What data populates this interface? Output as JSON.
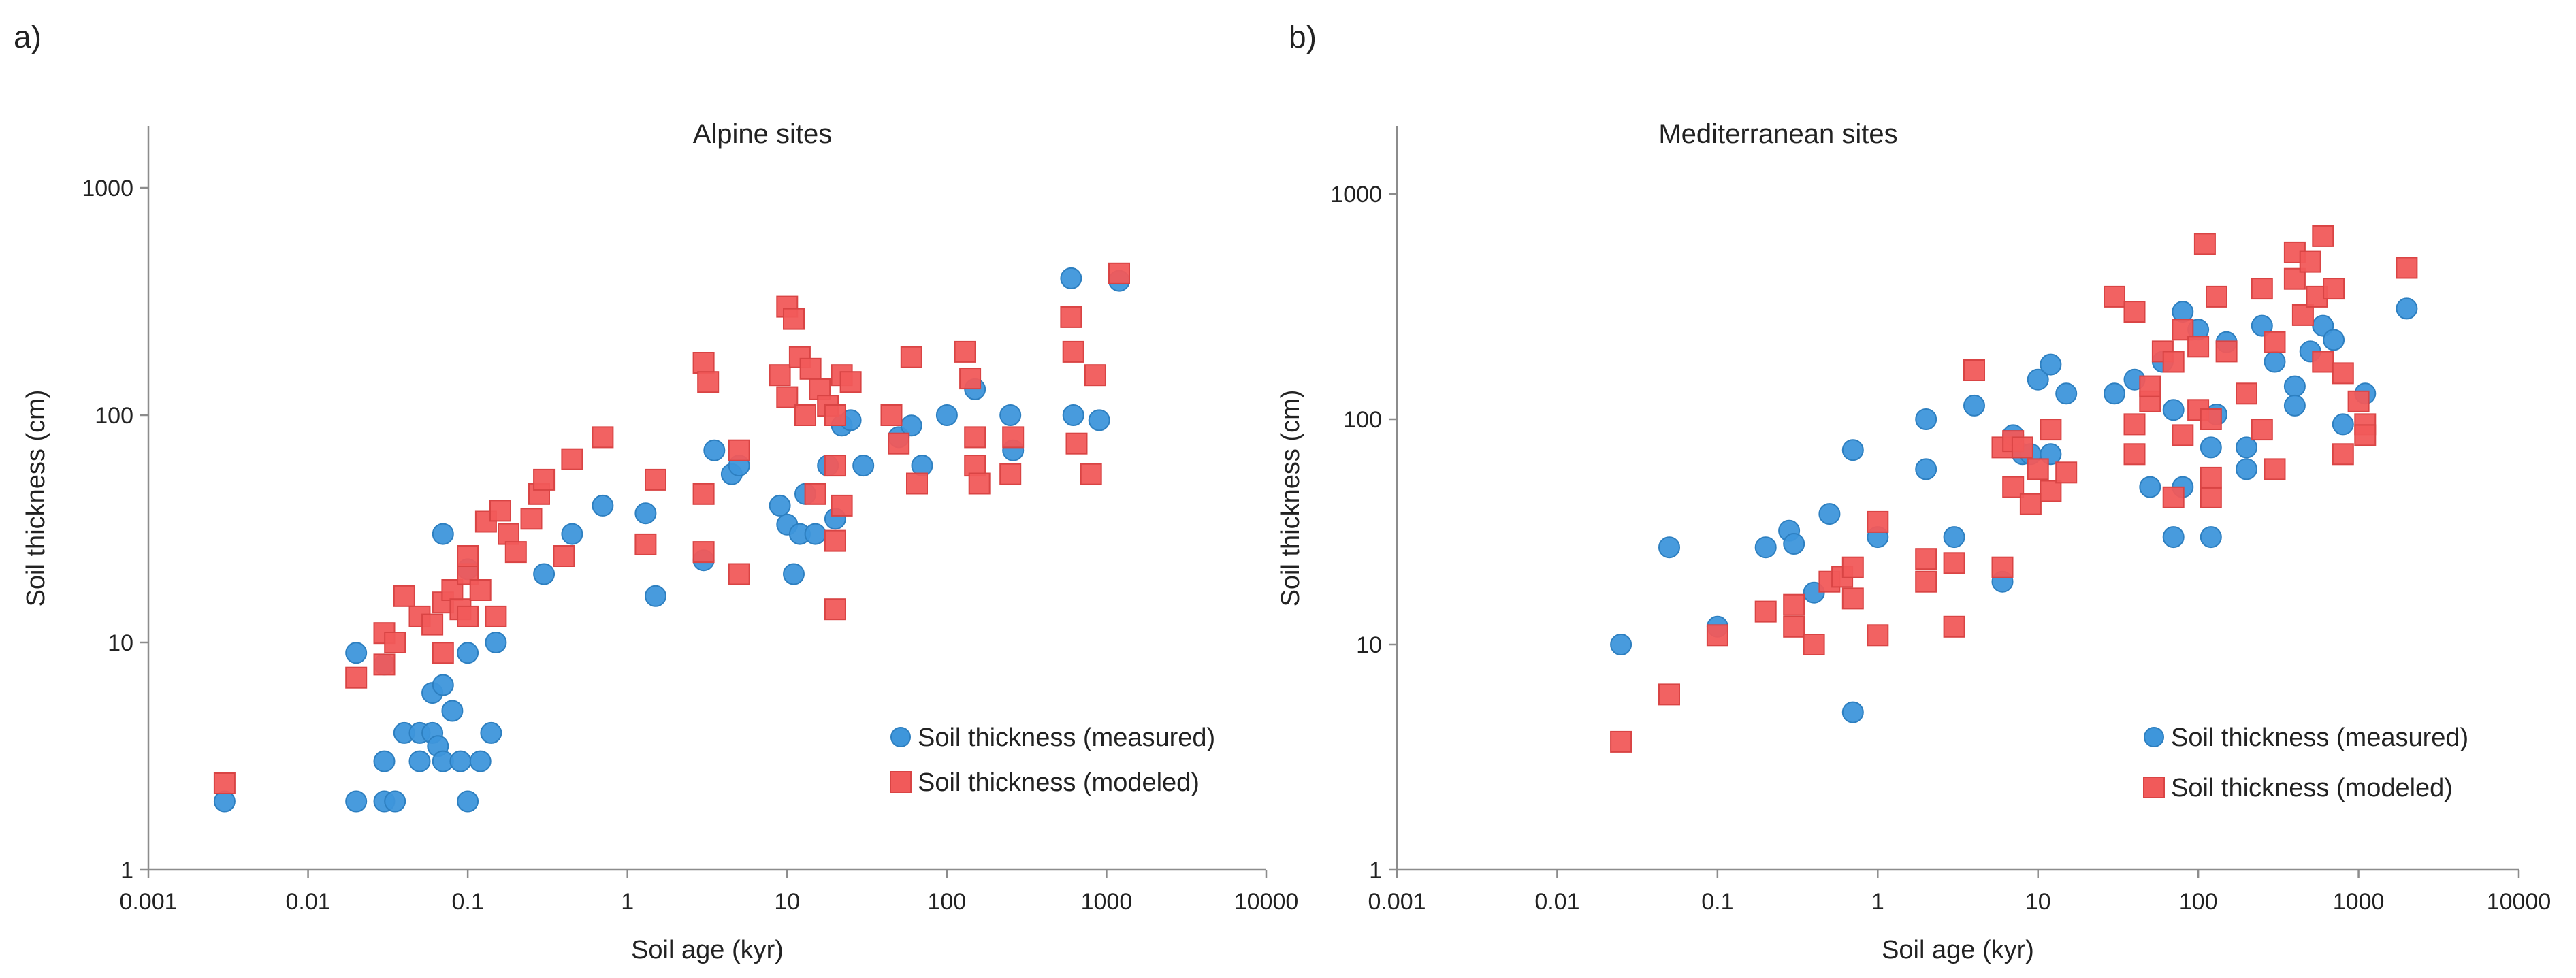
{
  "chart_data": [
    {
      "type": "scatter",
      "panel_label": "a)",
      "title": "Alpine sites",
      "xlabel": "Soil age (kyr)",
      "ylabel": "Soil thickness (cm)",
      "xscale": "log",
      "yscale": "log",
      "xlim": [
        0.001,
        10000
      ],
      "ylim": [
        1,
        2000
      ],
      "xticks": [
        "0.001",
        "0.01",
        "0.1",
        "1",
        "10",
        "100",
        "1000",
        "10000"
      ],
      "yticks": [
        "1",
        "10",
        "100",
        "1000"
      ],
      "legend": {
        "position": "bottom-right",
        "entries": [
          "Soil thickness (measured)",
          "Soil thickness (modeled)"
        ]
      },
      "series": [
        {
          "name": "Soil thickness (measured)",
          "marker": "circle",
          "color": "#3e96db",
          "points": [
            [
              0.003,
              2
            ],
            [
              0.02,
              2
            ],
            [
              0.02,
              9
            ],
            [
              0.03,
              2
            ],
            [
              0.03,
              3
            ],
            [
              0.03,
              8
            ],
            [
              0.035,
              2
            ],
            [
              0.04,
              4
            ],
            [
              0.05,
              3
            ],
            [
              0.05,
              4
            ],
            [
              0.06,
              4
            ],
            [
              0.06,
              6
            ],
            [
              0.065,
              3.5
            ],
            [
              0.07,
              3
            ],
            [
              0.07,
              6.5
            ],
            [
              0.08,
              5
            ],
            [
              0.09,
              3
            ],
            [
              0.1,
              2
            ],
            [
              0.1,
              9
            ],
            [
              0.1,
              21
            ],
            [
              0.12,
              3
            ],
            [
              0.14,
              4
            ],
            [
              0.15,
              10
            ],
            [
              0.07,
              30
            ],
            [
              0.3,
              20
            ],
            [
              0.45,
              30
            ],
            [
              0.7,
              40
            ],
            [
              1.3,
              37
            ],
            [
              1.5,
              16
            ],
            [
              3,
              23
            ],
            [
              3.5,
              70
            ],
            [
              4.5,
              55
            ],
            [
              5,
              60
            ],
            [
              9,
              40
            ],
            [
              10,
              33
            ],
            [
              11,
              20
            ],
            [
              12,
              30
            ],
            [
              13,
              45
            ],
            [
              15,
              30
            ],
            [
              18,
              60
            ],
            [
              20,
              35
            ],
            [
              22,
              90
            ],
            [
              25,
              95
            ],
            [
              30,
              60
            ],
            [
              50,
              80
            ],
            [
              60,
              90
            ],
            [
              70,
              60
            ],
            [
              100,
              100
            ],
            [
              150,
              130
            ],
            [
              250,
              100
            ],
            [
              600,
              400
            ],
            [
              620,
              100
            ],
            [
              900,
              95
            ],
            [
              1200,
              390
            ],
            [
              260,
              70
            ]
          ]
        },
        {
          "name": "Soil thickness (modeled)",
          "marker": "square",
          "color": "#f15a5a",
          "points": [
            [
              0.003,
              2.4
            ],
            [
              0.02,
              7
            ],
            [
              0.03,
              8
            ],
            [
              0.03,
              11
            ],
            [
              0.035,
              10
            ],
            [
              0.04,
              16
            ],
            [
              0.05,
              13
            ],
            [
              0.06,
              12
            ],
            [
              0.07,
              9
            ],
            [
              0.07,
              15
            ],
            [
              0.08,
              17
            ],
            [
              0.09,
              14
            ],
            [
              0.1,
              13
            ],
            [
              0.1,
              20
            ],
            [
              0.1,
              24
            ],
            [
              0.12,
              17
            ],
            [
              0.13,
              34
            ],
            [
              0.15,
              13
            ],
            [
              0.16,
              38
            ],
            [
              0.18,
              30
            ],
            [
              0.2,
              25
            ],
            [
              0.25,
              35
            ],
            [
              0.28,
              45
            ],
            [
              0.3,
              52
            ],
            [
              0.4,
              24
            ],
            [
              0.45,
              64
            ],
            [
              0.7,
              80
            ],
            [
              1.3,
              27
            ],
            [
              1.5,
              52
            ],
            [
              3,
              25
            ],
            [
              3,
              45
            ],
            [
              3,
              170
            ],
            [
              3.2,
              140
            ],
            [
              5,
              20
            ],
            [
              5,
              70
            ],
            [
              9,
              150
            ],
            [
              10,
              120
            ],
            [
              10,
              300
            ],
            [
              11,
              265
            ],
            [
              12,
              180
            ],
            [
              13,
              100
            ],
            [
              14,
              160
            ],
            [
              15,
              45
            ],
            [
              16,
              130
            ],
            [
              18,
              110
            ],
            [
              20,
              14
            ],
            [
              20,
              28
            ],
            [
              20,
              60
            ],
            [
              20,
              100
            ],
            [
              22,
              150
            ],
            [
              22,
              40
            ],
            [
              25,
              140
            ],
            [
              45,
              100
            ],
            [
              50,
              75
            ],
            [
              60,
              180
            ],
            [
              65,
              50
            ],
            [
              130,
              190
            ],
            [
              140,
              145
            ],
            [
              150,
              60
            ],
            [
              150,
              80
            ],
            [
              160,
              50
            ],
            [
              250,
              55
            ],
            [
              260,
              80
            ],
            [
              600,
              270
            ],
            [
              620,
              190
            ],
            [
              650,
              75
            ],
            [
              800,
              55
            ],
            [
              850,
              150
            ],
            [
              1200,
              420
            ]
          ]
        }
      ]
    },
    {
      "type": "scatter",
      "panel_label": "b)",
      "title": "Mediterranean sites",
      "xlabel": "Soil age (kyr)",
      "ylabel": "Soil thickness (cm)",
      "xscale": "log",
      "yscale": "log",
      "xlim": [
        0.001,
        10000
      ],
      "ylim": [
        1,
        2000
      ],
      "xticks": [
        "0.001",
        "0.01",
        "0.1",
        "1",
        "10",
        "100",
        "1000",
        "10000"
      ],
      "yticks": [
        "1",
        "10",
        "100",
        "1000"
      ],
      "legend": {
        "position": "bottom-right",
        "entries": [
          "Soil thickness (measured)",
          "Soil thickness (modeled)"
        ]
      },
      "series": [
        {
          "name": "Soil thickness (measured)",
          "marker": "circle",
          "color": "#3e96db",
          "points": [
            [
              0.025,
              10
            ],
            [
              0.05,
              27
            ],
            [
              0.1,
              12
            ],
            [
              0.2,
              27
            ],
            [
              0.28,
              32
            ],
            [
              0.3,
              28
            ],
            [
              0.4,
              17
            ],
            [
              0.5,
              38
            ],
            [
              0.7,
              73
            ],
            [
              0.7,
              5
            ],
            [
              1,
              30
            ],
            [
              2,
              60
            ],
            [
              2,
              100
            ],
            [
              3,
              30
            ],
            [
              4,
              115
            ],
            [
              6,
              19
            ],
            [
              7,
              85
            ],
            [
              8,
              70
            ],
            [
              9,
              70
            ],
            [
              10,
              150
            ],
            [
              12,
              175
            ],
            [
              12,
              70
            ],
            [
              15,
              130
            ],
            [
              30,
              130
            ],
            [
              40,
              150
            ],
            [
              50,
              50
            ],
            [
              60,
              180
            ],
            [
              70,
              30
            ],
            [
              70,
              110
            ],
            [
              80,
              300
            ],
            [
              80,
              50
            ],
            [
              100,
              250
            ],
            [
              120,
              75
            ],
            [
              120,
              30
            ],
            [
              130,
              105
            ],
            [
              150,
              220
            ],
            [
              200,
              60
            ],
            [
              200,
              75
            ],
            [
              250,
              260
            ],
            [
              300,
              180
            ],
            [
              400,
              140
            ],
            [
              400,
              115
            ],
            [
              500,
              200
            ],
            [
              600,
              260
            ],
            [
              700,
              225
            ],
            [
              800,
              95
            ],
            [
              1100,
              130
            ],
            [
              2000,
              310
            ]
          ]
        },
        {
          "name": "Soil thickness (modeled)",
          "marker": "square",
          "color": "#f15a5a",
          "points": [
            [
              0.025,
              3.7
            ],
            [
              0.05,
              6
            ],
            [
              0.1,
              11
            ],
            [
              0.2,
              14
            ],
            [
              0.3,
              15
            ],
            [
              0.3,
              12
            ],
            [
              0.4,
              10
            ],
            [
              0.5,
              19
            ],
            [
              0.6,
              20
            ],
            [
              0.7,
              16
            ],
            [
              0.7,
              22
            ],
            [
              1,
              11
            ],
            [
              1,
              35
            ],
            [
              2,
              19
            ],
            [
              2,
              24
            ],
            [
              3,
              12
            ],
            [
              3,
              23
            ],
            [
              4,
              165
            ],
            [
              6,
              22
            ],
            [
              6,
              75
            ],
            [
              7,
              50
            ],
            [
              7,
              80
            ],
            [
              8,
              75
            ],
            [
              9,
              42
            ],
            [
              10,
              60
            ],
            [
              12,
              48
            ],
            [
              12,
              90
            ],
            [
              15,
              58
            ],
            [
              30,
              350
            ],
            [
              40,
              300
            ],
            [
              40,
              95
            ],
            [
              40,
              70
            ],
            [
              50,
              120
            ],
            [
              50,
              140
            ],
            [
              60,
              200
            ],
            [
              70,
              45
            ],
            [
              70,
              180
            ],
            [
              80,
              85
            ],
            [
              80,
              250
            ],
            [
              100,
              210
            ],
            [
              100,
              110
            ],
            [
              110,
              600
            ],
            [
              120,
              45
            ],
            [
              120,
              55
            ],
            [
              120,
              100
            ],
            [
              130,
              350
            ],
            [
              150,
              200
            ],
            [
              200,
              130
            ],
            [
              250,
              90
            ],
            [
              250,
              380
            ],
            [
              300,
              220
            ],
            [
              300,
              60
            ],
            [
              400,
              550
            ],
            [
              400,
              420
            ],
            [
              450,
              290
            ],
            [
              500,
              500
            ],
            [
              550,
              350
            ],
            [
              600,
              650
            ],
            [
              600,
              180
            ],
            [
              700,
              380
            ],
            [
              800,
              70
            ],
            [
              800,
              160
            ],
            [
              1000,
              120
            ],
            [
              1100,
              95
            ],
            [
              1100,
              85
            ],
            [
              2000,
              470
            ]
          ]
        }
      ]
    }
  ]
}
